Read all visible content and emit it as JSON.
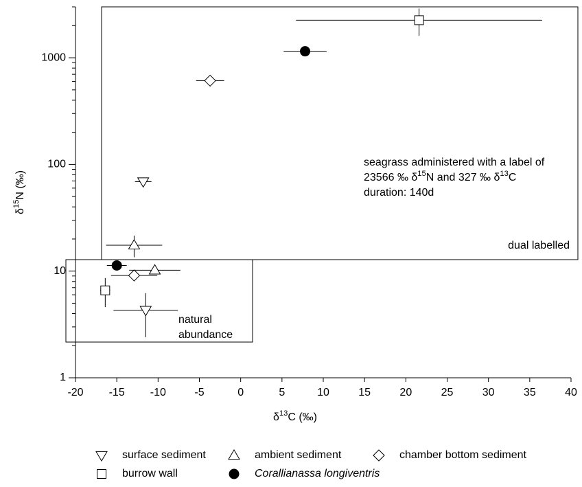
{
  "chart_data": {
    "type": "scatter",
    "xlabel": {
      "parts": [
        "δ",
        "13",
        "C (‰)"
      ]
    },
    "ylabel": {
      "parts": [
        "δ",
        "15",
        "N (‰)"
      ]
    },
    "xlim": [
      -20,
      40
    ],
    "xticks": [
      -20,
      -15,
      -10,
      -5,
      0,
      5,
      10,
      15,
      20,
      25,
      30,
      35,
      40
    ],
    "ylim": [
      1,
      3000
    ],
    "yticks": [
      1,
      10,
      100,
      1000
    ],
    "ylog": true,
    "series": [
      {
        "name": "surface sediment",
        "marker": "triangle-down",
        "color": "#000",
        "x": [
          -11.8,
          -11.5
        ],
        "values": [
          69,
          4.3
        ],
        "xerr": [
          1.0,
          3.9
        ],
        "yerr": [
          3,
          1.9
        ]
      },
      {
        "name": "ambient sediment",
        "marker": "triangle-up",
        "color": "#000",
        "x": [
          -12.9,
          -10.4
        ],
        "values": [
          17.5,
          10.2
        ],
        "xerr": [
          3.4,
          3.1
        ],
        "yerr": [
          4,
          0.5
        ]
      },
      {
        "name": "chamber bottom sediment",
        "marker": "diamond",
        "color": "#000",
        "x": [
          -3.7,
          -12.9
        ],
        "values": [
          610,
          9.1
        ],
        "xerr": [
          1.7,
          2.8
        ],
        "yerr": [
          20,
          0.5
        ]
      },
      {
        "name": "burrow wall",
        "marker": "square",
        "color": "#000",
        "x": [
          21.6,
          -16.4
        ],
        "values": [
          2250,
          6.6
        ],
        "xerr": [
          14.9,
          0.6
        ],
        "yerr": [
          640,
          2
        ]
      },
      {
        "name": "Corallianassa longiventris",
        "marker": "circle",
        "color": "#000",
        "x": [
          7.8,
          -15.0
        ],
        "values": [
          1150,
          11.3
        ],
        "xerr": [
          2.6,
          1.2
        ],
        "yerr": [
          100,
          0.5
        ]
      }
    ],
    "annotations": [
      {
        "parts": [
          "seagrass administered with a label of"
        ]
      },
      {
        "parts": [
          "23566 ‰ δ",
          "15",
          "N  and 327 ‰ δ",
          "13",
          "C"
        ]
      },
      {
        "parts": [
          "duration: 140d"
        ]
      },
      {
        "parts": [
          "dual labelled"
        ]
      },
      {
        "parts": [
          "natural"
        ]
      },
      {
        "parts": [
          "abundance"
        ]
      }
    ]
  }
}
